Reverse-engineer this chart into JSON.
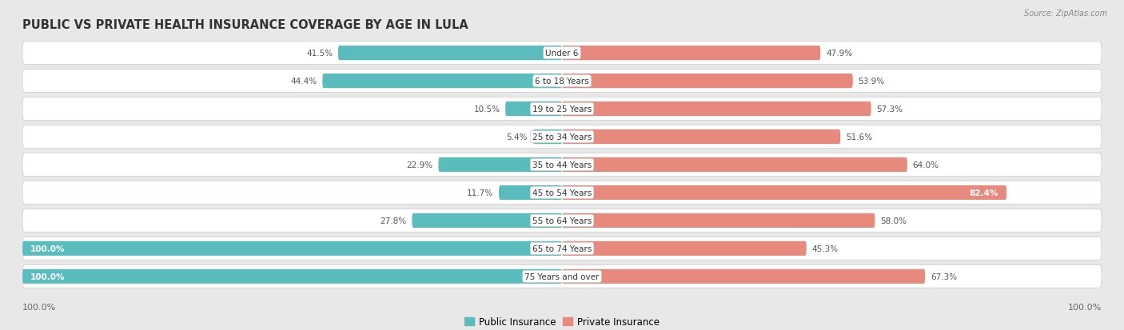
{
  "title": "PUBLIC VS PRIVATE HEALTH INSURANCE COVERAGE BY AGE IN LULA",
  "source": "Source: ZipAtlas.com",
  "categories": [
    "Under 6",
    "6 to 18 Years",
    "19 to 25 Years",
    "25 to 34 Years",
    "35 to 44 Years",
    "45 to 54 Years",
    "55 to 64 Years",
    "65 to 74 Years",
    "75 Years and over"
  ],
  "public_values": [
    41.5,
    44.4,
    10.5,
    5.4,
    22.9,
    11.7,
    27.8,
    100.0,
    100.0
  ],
  "private_values": [
    47.9,
    53.9,
    57.3,
    51.6,
    64.0,
    82.4,
    58.0,
    45.3,
    67.3
  ],
  "public_color": "#5bbcbe",
  "private_color": "#e8897e",
  "bg_color": "#e8e8e8",
  "row_bg_odd": "#f5f5f5",
  "row_bg_even": "#e0e0e0",
  "bar_height": 0.52,
  "max_value": 100.0,
  "title_fontsize": 10.5,
  "source_fontsize": 7,
  "label_fontsize": 8,
  "category_fontsize": 7.5,
  "value_fontsize": 7.5,
  "inside_value_color_white": [
    "100.0"
  ],
  "private_inside_threshold": 75.0,
  "public_inside_threshold": 50.0
}
